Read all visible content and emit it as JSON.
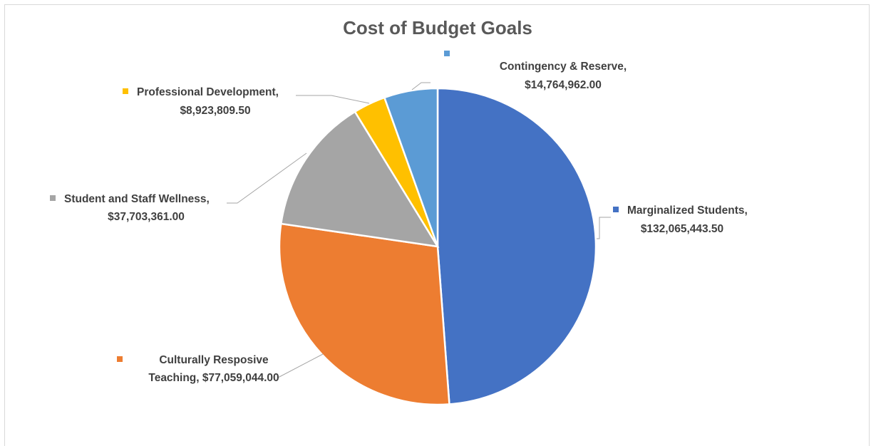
{
  "chart_data": {
    "type": "pie",
    "title": "Cost of Budget Goals",
    "legend": "none (data labels with category name and value)",
    "slices": [
      {
        "name": "Marginalized Students",
        "value": 132065443.5,
        "value_label": "$132,065,443.50",
        "color": "#4472C4"
      },
      {
        "name": "Culturally Resposive Teaching",
        "value": 77059044.0,
        "value_label": "$77,059,044.00",
        "color": "#ED7D31"
      },
      {
        "name": "Student and Staff Wellness",
        "value": 37703361.0,
        "value_label": "$37,703,361.00",
        "color": "#A5A5A5"
      },
      {
        "name": "Professional Development",
        "value": 8923809.5,
        "value_label": "$8,923,809.50",
        "color": "#FFC000"
      },
      {
        "name": "Contingency & Reserve",
        "value": 14764962.0,
        "value_label": "$14,764,962.00",
        "color": "#5B9BD5"
      }
    ],
    "labels": [
      {
        "lines": [
          "Marginalized Students,",
          "$132,065,443.50"
        ]
      },
      {
        "lines": [
          "Culturally Resposive",
          "Teaching, $77,059,044.00"
        ]
      },
      {
        "lines": [
          "Student and Staff Wellness,",
          "$37,703,361.00"
        ]
      },
      {
        "lines": [
          "Professional Development,",
          "$8,923,809.50"
        ]
      },
      {
        "lines": [
          "Contingency & Reserve,",
          "$14,764,962.00"
        ]
      }
    ]
  }
}
